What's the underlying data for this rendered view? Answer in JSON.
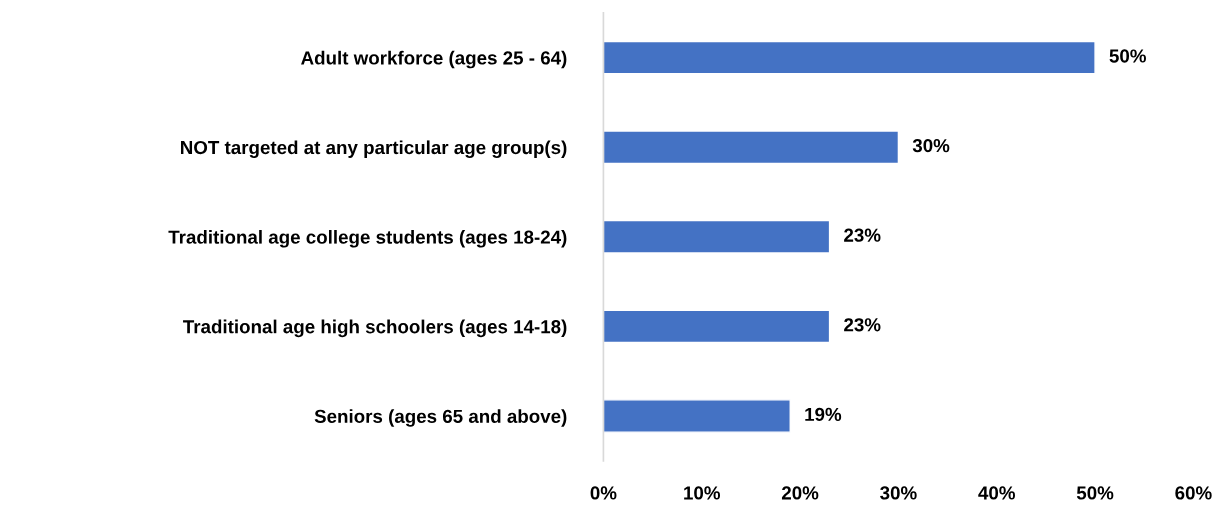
{
  "chart_data": {
    "type": "bar",
    "orientation": "horizontal",
    "categories": [
      "Adult workforce (ages 25 - 64)",
      "NOT targeted at any particular age group(s)",
      "Traditional age college students (ages 18-24)",
      "Traditional age high schoolers (ages 14-18)",
      "Seniors (ages 65 and above)"
    ],
    "values": [
      50,
      30,
      23,
      23,
      19
    ],
    "value_labels": [
      "50%",
      "30%",
      "23%",
      "23%",
      "19%"
    ],
    "color": "#4472c4",
    "xlim": [
      0,
      60
    ],
    "xticks": [
      {
        "value": 0,
        "label": "0%"
      },
      {
        "value": 10,
        "label": "10%"
      },
      {
        "value": 20,
        "label": "20%"
      },
      {
        "value": 30,
        "label": "30%"
      },
      {
        "value": 40,
        "label": "40%"
      },
      {
        "value": 50,
        "label": "50%"
      },
      {
        "value": 60,
        "label": "60%"
      }
    ],
    "grid": false,
    "legend": false
  }
}
